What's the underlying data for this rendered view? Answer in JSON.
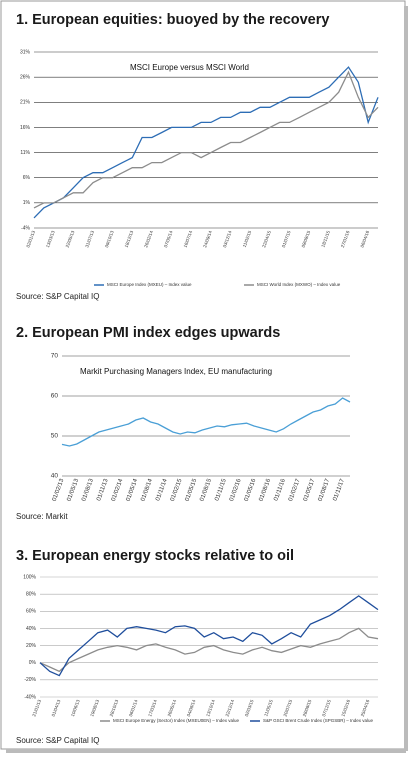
{
  "chart_data": [
    {
      "type": "line",
      "title": "1. European equities: buoyed by the recovery",
      "annotation": "MSCI Europe versus MSCI World",
      "source": "Source: S&P Capital IQ",
      "categories": [
        "02/01/13",
        null,
        "13/03/13",
        null,
        "22/05/13",
        null,
        "31/07/13",
        null,
        "09/10/13",
        null,
        "18/12/13",
        null,
        "26/02/14",
        null,
        "07/05/14",
        null,
        "16/07/14",
        null,
        "24/09/14",
        null,
        "03/12/14",
        null,
        "11/02/15",
        null,
        "22/04/15",
        null,
        "01/07/15",
        null,
        "09/09/15",
        null,
        "18/11/15",
        null,
        "27/01/16",
        null,
        "06/04/16",
        null
      ],
      "series": [
        {
          "name": "MSCI Europe Index (MXEU) – Index value",
          "color": "#2d6db5",
          "values": [
            -2,
            0,
            1,
            2,
            4,
            6,
            7,
            7,
            8,
            9,
            10,
            14,
            14,
            15,
            16,
            16,
            16,
            17,
            17,
            18,
            18,
            19,
            19,
            20,
            20,
            21,
            22,
            22,
            22,
            23,
            24,
            26,
            28,
            25,
            17,
            22
          ]
        },
        {
          "name": "MSCI World Index (MXWO) – Index value",
          "color": "#8c8c8c",
          "values": [
            0,
            1,
            1,
            2,
            3,
            3,
            5,
            6,
            6,
            7,
            8,
            8,
            9,
            9,
            10,
            11,
            11,
            10,
            11,
            12,
            13,
            13,
            14,
            15,
            16,
            17,
            17,
            18,
            19,
            20,
            21,
            23,
            27,
            22,
            18,
            20
          ]
        }
      ],
      "ylim": [
        -4,
        31
      ],
      "yticks": [
        {
          "value": 31,
          "label": "31%"
        },
        {
          "value": 26,
          "label": "26%"
        },
        {
          "value": 21,
          "label": "21%"
        },
        {
          "value": 16,
          "label": "16%"
        },
        {
          "value": 11,
          "label": "11%"
        },
        {
          "value": 6,
          "label": "6%"
        },
        {
          "value": 1,
          "label": "1%"
        },
        {
          "value": -4,
          "label": "-4%"
        }
      ],
      "grid": true
    },
    {
      "type": "line",
      "title": "2. European PMI index edges upwards",
      "annotation": "Markit Purchasing Managers Index, EU manufacturing",
      "source": "Source: Markit",
      "categories": [
        "01/02/13",
        null,
        "01/05/13",
        null,
        "01/08/13",
        null,
        "01/11/13",
        null,
        "01/02/14",
        null,
        "01/05/14",
        null,
        "01/08/14",
        null,
        "01/11/14",
        null,
        "01/02/15",
        null,
        "01/05/15",
        null,
        "01/08/15",
        null,
        "01/11/15",
        null,
        "01/02/16",
        null,
        "01/05/16",
        null,
        "01/08/16",
        null,
        "01/11/16",
        null,
        "01/02/17",
        null,
        "01/05/17",
        null,
        "01/08/17",
        null,
        "01/11/17",
        null
      ],
      "series": [
        {
          "name": "Markit Purchasing Managers Index",
          "color": "#4a9fd6",
          "values": [
            47.9,
            47.5,
            48,
            49,
            50,
            51,
            51.5,
            52,
            52.5,
            53,
            54,
            54.5,
            53.5,
            53,
            52,
            51,
            50.5,
            51,
            50.8,
            51.5,
            52,
            52.5,
            52.3,
            52.8,
            53,
            53.2,
            52.5,
            52,
            51.5,
            51,
            51.8,
            53,
            54,
            55,
            56,
            56.5,
            57.5,
            58,
            59.5,
            58.5
          ]
        }
      ],
      "ylim": [
        40,
        70
      ],
      "yticks": [
        40,
        50,
        60,
        70
      ],
      "grid": true
    },
    {
      "type": "line",
      "title": "3. European energy stocks relative to oil",
      "source": "Source: S&P Capital IQ",
      "categories": [
        "21/01/13",
        null,
        "01/04/13",
        null,
        "10/06/13",
        null,
        "19/08/13",
        null,
        "28/10/13",
        null,
        "06/01/14",
        null,
        "17/03/14",
        null,
        "26/05/14",
        null,
        "04/08/14",
        null,
        "13/10/14",
        null,
        "22/12/14",
        null,
        "02/03/15",
        null,
        "11/05/15",
        null,
        "20/07/15",
        null,
        "28/09/15",
        null,
        "07/12/15",
        null,
        "15/02/16",
        null,
        "25/04/16",
        null
      ],
      "series": [
        {
          "name": "MSCI Europe Energy (Sector) Index (MXEU0EN) – Index value",
          "color": "#8c8c8c",
          "values": [
            0,
            -5,
            -10,
            0,
            5,
            10,
            15,
            18,
            20,
            18,
            15,
            20,
            22,
            18,
            15,
            10,
            12,
            18,
            20,
            15,
            12,
            10,
            15,
            18,
            14,
            12,
            16,
            20,
            18,
            22,
            25,
            28,
            35,
            40,
            30,
            28
          ]
        },
        {
          "name": "S&P GSCI Brent Crude Index (SPGSBR) – Index value",
          "color": "#1f4e9c",
          "values": [
            0,
            -10,
            -15,
            5,
            15,
            25,
            35,
            38,
            30,
            40,
            42,
            40,
            38,
            35,
            42,
            43,
            40,
            30,
            35,
            28,
            30,
            25,
            35,
            32,
            22,
            28,
            35,
            30,
            45,
            50,
            55,
            62,
            70,
            78,
            70,
            62
          ]
        }
      ],
      "ylim": [
        -40,
        100
      ],
      "yticks": [
        {
          "value": 100,
          "label": "100%"
        },
        {
          "value": 80,
          "label": "80%"
        },
        {
          "value": 60,
          "label": "60%"
        },
        {
          "value": 40,
          "label": "40%"
        },
        {
          "value": 20,
          "label": "20%"
        },
        {
          "value": 0,
          "label": "0%"
        },
        {
          "value": -20,
          "label": "-20%"
        },
        {
          "value": -40,
          "label": "-40%"
        }
      ],
      "grid": true
    }
  ]
}
